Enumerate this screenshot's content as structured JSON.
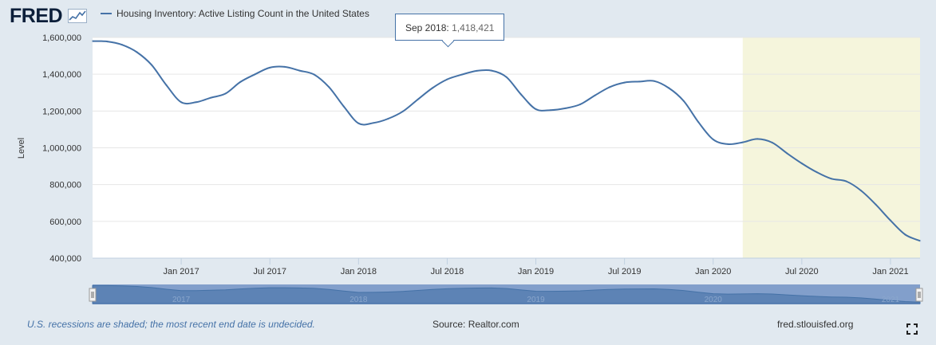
{
  "logo": "FRED",
  "legend": {
    "series_label": "Housing Inventory: Active Listing Count in the United States"
  },
  "tooltip": {
    "date": "Sep 2018:",
    "value": "1,418,421"
  },
  "footer": {
    "recession_note": "U.S. recessions are shaded; the most recent end date is undecided.",
    "source": "Source: Realtor.com",
    "site": "fred.stlouisfed.org"
  },
  "navigator": {
    "labels": [
      "2017",
      "2018",
      "2019",
      "2020",
      "2021"
    ]
  },
  "colors": {
    "line": "#4572a7",
    "recession": "#f5f5dc",
    "background": "#e1e9f0",
    "plot": "#ffffff"
  },
  "chart_data": {
    "type": "line",
    "ylabel": "Level",
    "xlabel": "",
    "ylim": [
      400000,
      1600000
    ],
    "yticks": [
      400000,
      600000,
      800000,
      1000000,
      1200000,
      1400000,
      1600000
    ],
    "ytick_labels": [
      "400,000",
      "600,000",
      "800,000",
      "1,000,000",
      "1,200,000",
      "1,400,000",
      "1,600,000"
    ],
    "xtick_labels": [
      "Jan 2017",
      "Jul 2017",
      "Jan 2018",
      "Jul 2018",
      "Jan 2019",
      "Jul 2019",
      "Jan 2020",
      "Jul 2020",
      "Jan 2021"
    ],
    "x_start": "2016-07",
    "x_end": "2021-03",
    "recession": {
      "start": "2020-03",
      "end": "2021-03"
    },
    "series": [
      {
        "x": [
          "2016-07",
          "2016-08",
          "2016-09",
          "2016-10",
          "2016-11",
          "2016-12",
          "2017-01",
          "2017-02",
          "2017-03",
          "2017-04",
          "2017-05",
          "2017-06",
          "2017-07",
          "2017-08",
          "2017-09",
          "2017-10",
          "2017-11",
          "2017-12",
          "2018-01",
          "2018-02",
          "2018-03",
          "2018-04",
          "2018-05",
          "2018-06",
          "2018-07",
          "2018-08",
          "2018-09",
          "2018-10",
          "2018-11",
          "2018-12",
          "2019-01",
          "2019-02",
          "2019-03",
          "2019-04",
          "2019-05",
          "2019-06",
          "2019-07",
          "2019-08",
          "2019-09",
          "2019-10",
          "2019-11",
          "2019-12",
          "2020-01",
          "2020-02",
          "2020-03",
          "2020-04",
          "2020-05",
          "2020-06",
          "2020-07",
          "2020-08",
          "2020-09",
          "2020-10",
          "2020-11",
          "2020-12",
          "2021-01",
          "2021-02",
          "2021-03"
        ],
        "values": [
          1580000,
          1578000,
          1560000,
          1520000,
          1450000,
          1340000,
          1248000,
          1248000,
          1272000,
          1295000,
          1358000,
          1400000,
          1436000,
          1440000,
          1420000,
          1398000,
          1330000,
          1225000,
          1133000,
          1135000,
          1158000,
          1198000,
          1262000,
          1325000,
          1372000,
          1398000,
          1418421,
          1420000,
          1385000,
          1290000,
          1210000,
          1205000,
          1215000,
          1236000,
          1285000,
          1330000,
          1355000,
          1360000,
          1363000,
          1325000,
          1255000,
          1140000,
          1045000,
          1020000,
          1030000,
          1048000,
          1028000,
          970000,
          915000,
          868000,
          832000,
          818000,
          768000,
          692000,
          605000,
          528000,
          494000
        ]
      }
    ]
  }
}
